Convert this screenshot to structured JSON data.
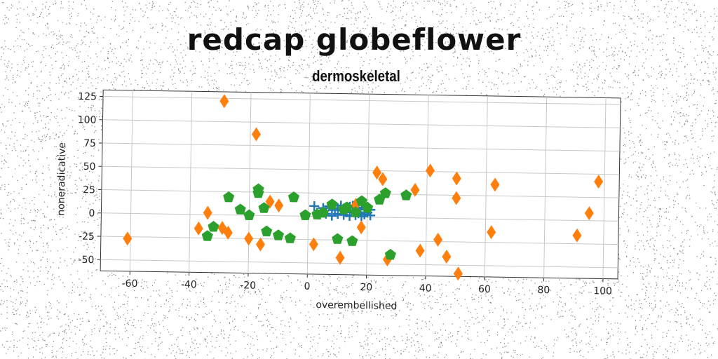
{
  "chart_data": {
    "type": "scatter",
    "title": "redcap globeflower",
    "subtitle": "dermoskeletal",
    "xlabel": "overembellished",
    "ylabel": "noneradicative",
    "xlim": [
      -70,
      105
    ],
    "ylim": [
      -62,
      132
    ],
    "xticks": [
      -60,
      -40,
      -20,
      0,
      20,
      40,
      60,
      80,
      100
    ],
    "yticks": [
      -50,
      -25,
      0,
      25,
      50,
      75,
      100,
      125
    ],
    "grid": true,
    "series": [
      {
        "marker": "plus",
        "color": "#1f77b4",
        "points": [
          [
            2,
            11
          ],
          [
            3,
            4
          ],
          [
            4,
            2
          ],
          [
            5,
            9
          ],
          [
            6,
            3
          ],
          [
            7,
            11
          ],
          [
            8,
            1
          ],
          [
            9,
            7
          ],
          [
            10,
            3
          ],
          [
            11,
            12
          ],
          [
            12,
            2
          ],
          [
            12,
            9
          ],
          [
            13,
            5
          ],
          [
            14,
            11
          ],
          [
            14,
            1
          ],
          [
            15,
            6
          ],
          [
            16,
            2
          ],
          [
            17,
            10
          ],
          [
            17,
            4
          ],
          [
            18,
            1
          ],
          [
            19,
            8
          ],
          [
            19,
            3
          ],
          [
            20,
            11
          ],
          [
            20,
            5
          ],
          [
            21,
            2
          ],
          [
            21,
            8
          ],
          [
            15,
            12
          ],
          [
            18,
            13
          ],
          [
            10,
            9
          ],
          [
            5,
            6
          ]
        ]
      },
      {
        "marker": "diamond",
        "color": "#ff7f0e",
        "points": [
          [
            -61,
            -27
          ],
          [
            -37,
            -15
          ],
          [
            -34,
            2
          ],
          [
            -29,
            -14
          ],
          [
            -27,
            -19
          ],
          [
            -29,
            122
          ],
          [
            -18,
            87
          ],
          [
            -16,
            -31
          ],
          [
            -20,
            -25
          ],
          [
            -13,
            15
          ],
          [
            -10,
            11
          ],
          [
            2,
            -30
          ],
          [
            11,
            -44
          ],
          [
            18,
            -11
          ],
          [
            16,
            13
          ],
          [
            23,
            48
          ],
          [
            25,
            41
          ],
          [
            27,
            -45
          ],
          [
            36,
            30
          ],
          [
            38,
            -35
          ],
          [
            41,
            51
          ],
          [
            44,
            -23
          ],
          [
            47,
            -41
          ],
          [
            50,
            43
          ],
          [
            50,
            22
          ],
          [
            51,
            -59
          ],
          [
            63,
            37
          ],
          [
            62,
            -14
          ],
          [
            91,
            -16
          ],
          [
            95,
            8
          ],
          [
            98,
            42
          ]
        ]
      },
      {
        "marker": "pentagon",
        "color": "#2ca02c",
        "points": [
          [
            -34,
            -23
          ],
          [
            -32,
            -13
          ],
          [
            -27,
            19
          ],
          [
            -23,
            6
          ],
          [
            -20,
            0
          ],
          [
            -17,
            28
          ],
          [
            -17,
            24
          ],
          [
            -15,
            8
          ],
          [
            -14,
            -17
          ],
          [
            -10,
            -21
          ],
          [
            -6,
            -24
          ],
          [
            -5,
            20
          ],
          [
            -1,
            1
          ],
          [
            3,
            2
          ],
          [
            5,
            4
          ],
          [
            8,
            13
          ],
          [
            10,
            -24
          ],
          [
            13,
            10
          ],
          [
            15,
            -26
          ],
          [
            18,
            17
          ],
          [
            20,
            10
          ],
          [
            24,
            19
          ],
          [
            26,
            26
          ],
          [
            28,
            -40
          ],
          [
            33,
            24
          ],
          [
            12,
            8
          ],
          [
            16,
            5
          ]
        ]
      }
    ]
  }
}
